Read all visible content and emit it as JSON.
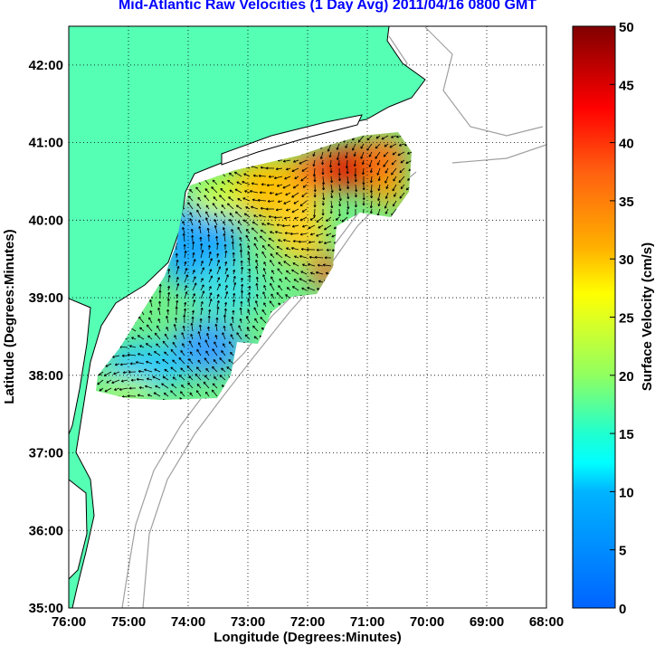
{
  "title": "Mid-Atlantic Raw Velocities (1 Day Avg) 2011/04/16 0800 GMT",
  "xaxis": {
    "label": "Longitude (Degrees:Minutes)",
    "ticks": [
      "76:00",
      "75:00",
      "74:00",
      "73:00",
      "72:00",
      "71:00",
      "70:00",
      "69:00",
      "68:00"
    ],
    "range": [
      -76,
      -68
    ]
  },
  "yaxis": {
    "label": "Latitude (Degrees:Minutes)",
    "ticks": [
      "35:00",
      "36:00",
      "37:00",
      "38:00",
      "39:00",
      "40:00",
      "41:00",
      "42:00"
    ],
    "range": [
      35,
      42.5
    ]
  },
  "colorbar": {
    "label": "Surface Velocity (cm/s)",
    "ticks": [
      "0",
      "5",
      "10",
      "15",
      "20",
      "25",
      "30",
      "35",
      "40",
      "45",
      "50"
    ],
    "range": [
      0,
      50
    ]
  },
  "colors": {
    "land": "#55ffb4",
    "title": "#0000ff",
    "coast_contour": "#a0a0a0"
  }
}
